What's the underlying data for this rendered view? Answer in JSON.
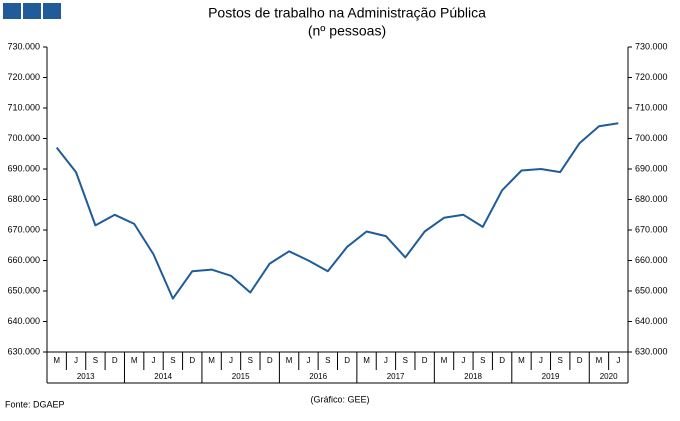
{
  "chart_data": {
    "type": "line",
    "title": "Postos de trabalho na Administração Pública",
    "subtitle": "(nº pessoas)",
    "source": "Fonte: DGAEP",
    "credit": "(Gráfico: GEE)",
    "categories": [
      "M",
      "J",
      "S",
      "D",
      "M",
      "J",
      "S",
      "D",
      "M",
      "J",
      "S",
      "D",
      "M",
      "J",
      "S",
      "D",
      "M",
      "J",
      "S",
      "D",
      "M",
      "J",
      "S",
      "D",
      "M",
      "J",
      "S",
      "D",
      "M",
      "J"
    ],
    "x_groups": [
      "2013",
      "2014",
      "2015",
      "2016",
      "2017",
      "2018",
      "2019",
      "2020"
    ],
    "series": [
      {
        "name": "Postos de trabalho",
        "color": "#1f5c99",
        "values": [
          697000,
          689000,
          671500,
          675000,
          672000,
          662000,
          647500,
          656500,
          657000,
          655000,
          649500,
          659000,
          663000,
          660000,
          656500,
          664500,
          669500,
          668000,
          661000,
          669500,
          674000,
          675000,
          671000,
          683000,
          689500,
          690000,
          689000,
          698500,
          704000,
          705000
        ]
      }
    ],
    "ylim": [
      630000,
      730000
    ],
    "yticks": [
      {
        "value": 630000,
        "label": "630.000"
      },
      {
        "value": 640000,
        "label": "640.000"
      },
      {
        "value": 650000,
        "label": "650.000"
      },
      {
        "value": 660000,
        "label": "660.000"
      },
      {
        "value": 670000,
        "label": "670.000"
      },
      {
        "value": 680000,
        "label": "680.000"
      },
      {
        "value": 690000,
        "label": "690.000"
      },
      {
        "value": 700000,
        "label": "700.000"
      },
      {
        "value": 710000,
        "label": "710.000"
      },
      {
        "value": 720000,
        "label": "720.000"
      },
      {
        "value": 730000,
        "label": "730.000"
      }
    ],
    "y2lim": [
      630000,
      730000
    ],
    "y2ticks": [
      {
        "value": 630000,
        "label": "630.000"
      },
      {
        "value": 640000,
        "label": "640.000"
      },
      {
        "value": 650000,
        "label": "650.000"
      },
      {
        "value": 660000,
        "label": "660.000"
      },
      {
        "value": 670000,
        "label": "670.000"
      },
      {
        "value": 680000,
        "label": "680.000"
      },
      {
        "value": 690000,
        "label": "690.000"
      },
      {
        "value": 700000,
        "label": "700.000"
      },
      {
        "value": 710000,
        "label": "710.000"
      },
      {
        "value": 720000,
        "label": "720.000"
      },
      {
        "value": 730000,
        "label": "730.000"
      }
    ],
    "grid": false
  }
}
